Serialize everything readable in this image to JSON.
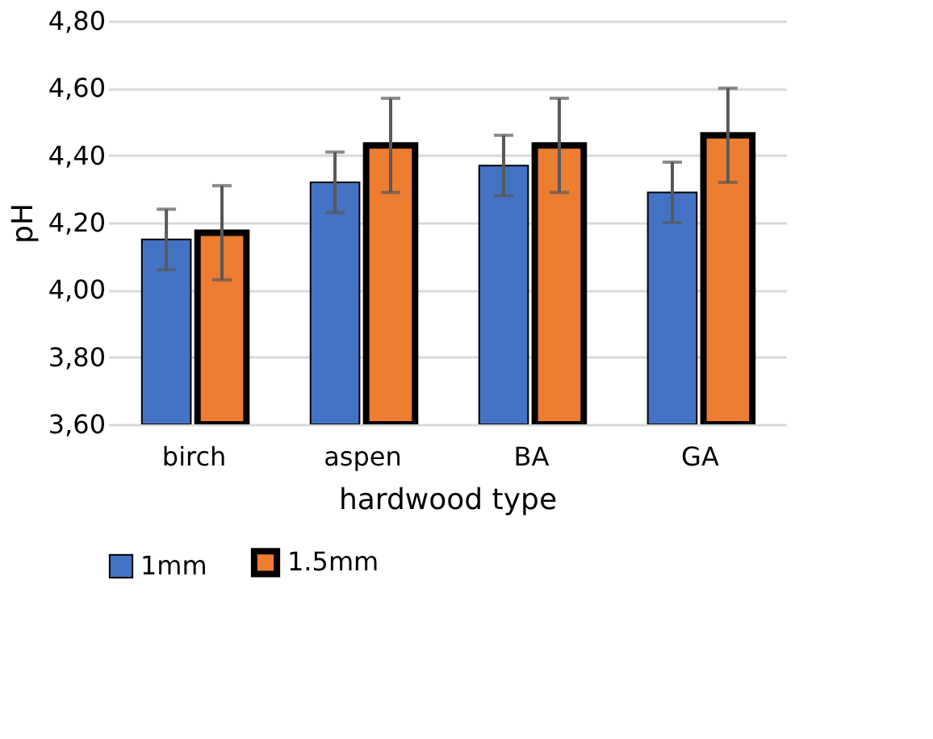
{
  "chart_data": {
    "type": "bar",
    "xlabel": "hardwood type",
    "ylabel": "pH",
    "categories": [
      "birch",
      "aspen",
      "BA",
      "GA"
    ],
    "series": [
      {
        "name": "1mm",
        "color": "#4472c4",
        "values": [
          4.15,
          4.32,
          4.37,
          4.29
        ],
        "errors": [
          0.09,
          0.09,
          0.09,
          0.09
        ]
      },
      {
        "name": "1.5mm",
        "color": "#ed7d31",
        "values": [
          4.17,
          4.43,
          4.43,
          4.46
        ],
        "errors": [
          0.14,
          0.14,
          0.14,
          0.14
        ]
      }
    ],
    "ylim": [
      3.6,
      4.8
    ],
    "yticks": [
      {
        "value": 3.6,
        "label": "3,60"
      },
      {
        "value": 3.8,
        "label": "3,80"
      },
      {
        "value": 4.0,
        "label": "4,00"
      },
      {
        "value": 4.2,
        "label": "4,20"
      },
      {
        "value": 4.4,
        "label": "4,40"
      },
      {
        "value": 4.6,
        "label": "4,60"
      },
      {
        "value": 4.8,
        "label": "4,80"
      }
    ],
    "grid": "y",
    "legend": "bottom"
  }
}
